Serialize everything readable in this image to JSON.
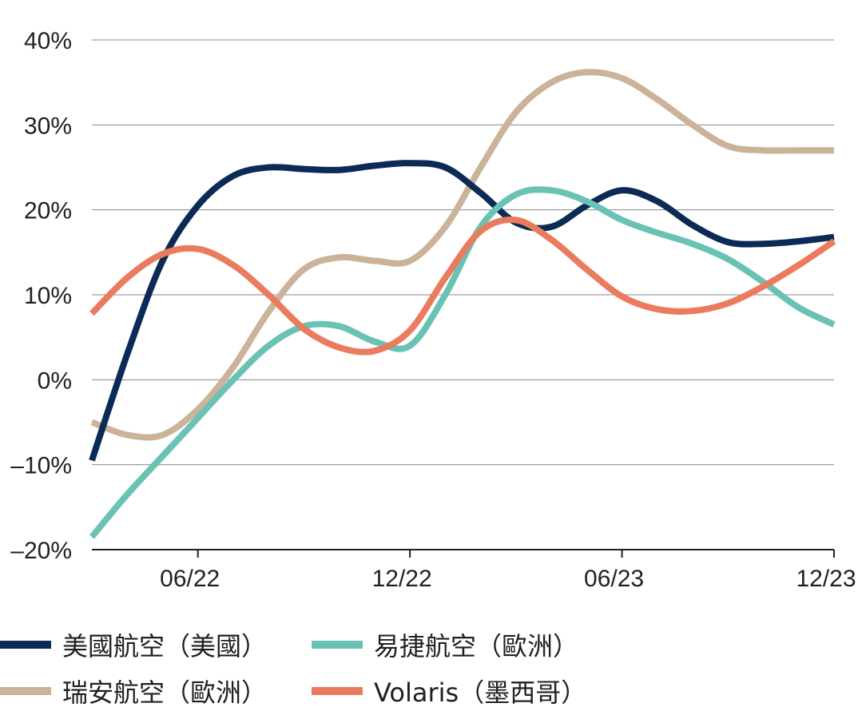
{
  "chart_data": {
    "type": "line",
    "x": [
      "2022-03",
      "2022-04",
      "2022-05",
      "2022-06",
      "2022-07",
      "2022-08",
      "2022-09",
      "2022-10",
      "2022-11",
      "2022-12",
      "2023-01",
      "2023-02",
      "2023-03",
      "2023-04",
      "2023-05",
      "2023-06",
      "2023-07",
      "2023-08",
      "2023-09",
      "2023-10",
      "2023-11",
      "2023-12"
    ],
    "x_ticks": [
      {
        "x": "2022-06",
        "label": "06/22"
      },
      {
        "x": "2022-12",
        "label": "12/22"
      },
      {
        "x": "2023-06",
        "label": "06/23"
      },
      {
        "x": "2023-12",
        "label": "12/23"
      }
    ],
    "y_ticks": [
      {
        "value": 40,
        "label": "40%"
      },
      {
        "value": 30,
        "label": "30%"
      },
      {
        "value": 20,
        "label": "20%"
      },
      {
        "value": 10,
        "label": "10%"
      },
      {
        "value": 0,
        "label": "0%"
      },
      {
        "value": -10,
        "label": "–10%"
      },
      {
        "value": -20,
        "label": "–20%"
      }
    ],
    "ylim": [
      -20,
      40
    ],
    "grid": true,
    "legend_position": "bottom",
    "series": [
      {
        "name": "美國航空（美國）",
        "color": "#0b2a55",
        "values": [
          -9.5,
          3,
          14,
          20.5,
          24,
          25,
          24.8,
          24.7,
          25.2,
          25.5,
          25,
          22,
          18.5,
          18,
          20.5,
          22.3,
          21,
          18.2,
          16.2,
          16,
          16.3,
          16.8
        ]
      },
      {
        "name": "瑞安航空（歐洲）",
        "color": "#cbb39a",
        "values": [
          -5,
          -6.5,
          -6.5,
          -3.5,
          1.5,
          8,
          13,
          14.4,
          14,
          14,
          18,
          25,
          31.5,
          35,
          36.2,
          35.5,
          33,
          30,
          27.5,
          27,
          27,
          27
        ]
      },
      {
        "name": "易捷航空（歐洲）",
        "color": "#69c2b4",
        "values": [
          -18.5,
          -13.5,
          -9,
          -4.5,
          0,
          4,
          6.3,
          6.3,
          4.5,
          4,
          10,
          18,
          21.8,
          22.3,
          21,
          18.8,
          17.3,
          16,
          14.2,
          11.5,
          8.5,
          6.5
        ]
      },
      {
        "name": "Volaris（墨西哥）",
        "color": "#ea7b5e",
        "values": [
          7.8,
          12,
          14.8,
          15.4,
          13.5,
          10,
          6,
          3.8,
          3.4,
          5.8,
          12,
          17.5,
          18.8,
          16.5,
          13,
          9.8,
          8.3,
          8.1,
          9,
          11,
          13.5,
          16.3
        ]
      }
    ]
  }
}
